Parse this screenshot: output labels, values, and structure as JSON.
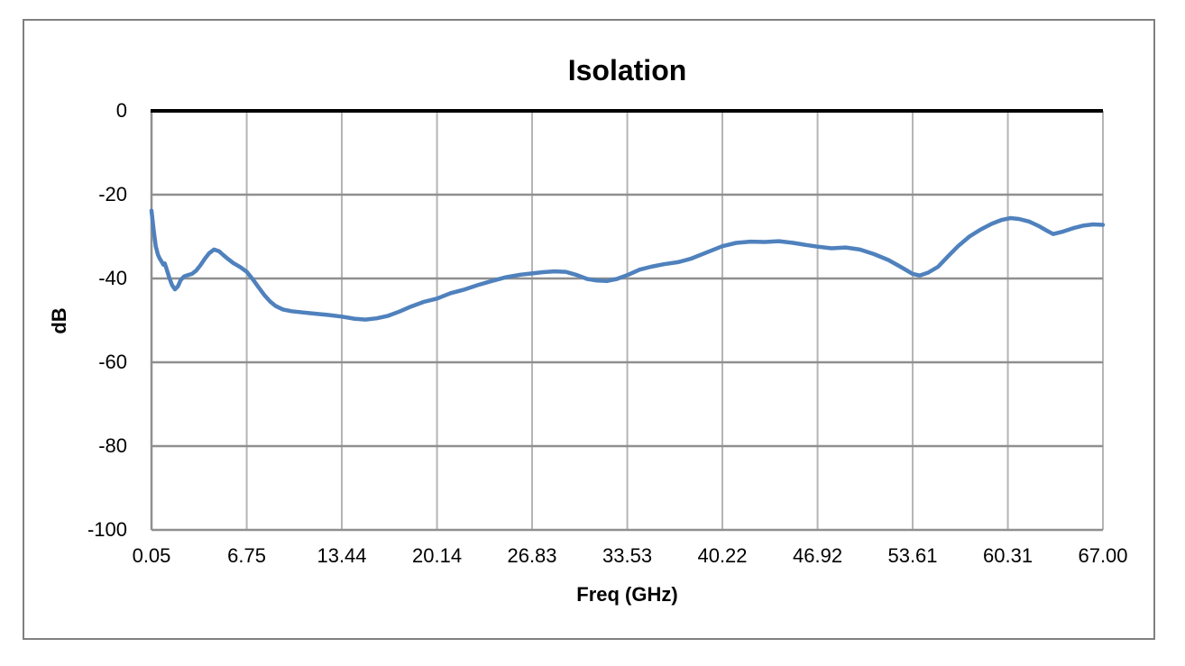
{
  "chart_data": {
    "type": "line",
    "title": "Isolation",
    "xlabel": "Freq (GHz)",
    "ylabel": "dB",
    "xlim": [
      0.05,
      67.0
    ],
    "ylim": [
      -100,
      0
    ],
    "grid": true,
    "legend": "none",
    "x_ticks": [
      "0.05",
      "6.75",
      "13.44",
      "20.14",
      "26.83",
      "33.53",
      "40.22",
      "46.92",
      "53.61",
      "60.31",
      "67.00"
    ],
    "x_tick_values": [
      0.05,
      6.75,
      13.44,
      20.14,
      26.83,
      33.53,
      40.22,
      46.92,
      53.61,
      60.31,
      67.0
    ],
    "y_ticks": [
      "0",
      "-20",
      "-40",
      "-60",
      "-80",
      "-100"
    ],
    "y_tick_values": [
      0,
      -20,
      -40,
      -60,
      -80,
      -100
    ],
    "colors": {
      "line": "#4F81BD",
      "grid_vertical": "#b5b5b5",
      "grid_horizontal": "#8f8f8f",
      "zero_axis": "#000000",
      "left_axis": "#8f8f8f",
      "frame_border": "#808080",
      "text": "#000000",
      "background": "#ffffff"
    },
    "series": [
      {
        "name": "Isolation",
        "points": [
          [
            0.05,
            -23.8
          ],
          [
            0.2,
            -28.5
          ],
          [
            0.35,
            -32.3
          ],
          [
            0.5,
            -34.3
          ],
          [
            0.62,
            -35.2
          ],
          [
            0.75,
            -35.9
          ],
          [
            0.88,
            -36.7
          ],
          [
            0.98,
            -36.4
          ],
          [
            1.1,
            -37.6
          ],
          [
            1.3,
            -39.8
          ],
          [
            1.5,
            -41.6
          ],
          [
            1.7,
            -42.6
          ],
          [
            1.9,
            -41.9
          ],
          [
            2.1,
            -40.4
          ],
          [
            2.35,
            -39.5
          ],
          [
            2.6,
            -39.2
          ],
          [
            2.9,
            -38.9
          ],
          [
            3.2,
            -38.1
          ],
          [
            3.5,
            -36.8
          ],
          [
            3.8,
            -35.3
          ],
          [
            4.1,
            -34.0
          ],
          [
            4.45,
            -33.1
          ],
          [
            4.8,
            -33.5
          ],
          [
            5.1,
            -34.4
          ],
          [
            5.45,
            -35.4
          ],
          [
            5.8,
            -36.3
          ],
          [
            6.3,
            -37.3
          ],
          [
            6.75,
            -38.4
          ],
          [
            7.2,
            -40.3
          ],
          [
            7.6,
            -42.2
          ],
          [
            8.0,
            -44.0
          ],
          [
            8.4,
            -45.5
          ],
          [
            8.8,
            -46.6
          ],
          [
            9.3,
            -47.4
          ],
          [
            9.9,
            -47.8
          ],
          [
            10.7,
            -48.1
          ],
          [
            11.6,
            -48.4
          ],
          [
            12.5,
            -48.7
          ],
          [
            13.44,
            -49.1
          ],
          [
            14.3,
            -49.6
          ],
          [
            15.1,
            -49.8
          ],
          [
            15.9,
            -49.5
          ],
          [
            16.7,
            -48.9
          ],
          [
            17.5,
            -47.9
          ],
          [
            18.3,
            -46.7
          ],
          [
            19.2,
            -45.6
          ],
          [
            20.14,
            -44.8
          ],
          [
            21.1,
            -43.5
          ],
          [
            22.0,
            -42.7
          ],
          [
            23.0,
            -41.6
          ],
          [
            24.0,
            -40.6
          ],
          [
            25.0,
            -39.7
          ],
          [
            26.0,
            -39.1
          ],
          [
            26.83,
            -38.8
          ],
          [
            27.6,
            -38.5
          ],
          [
            28.4,
            -38.3
          ],
          [
            29.2,
            -38.4
          ],
          [
            30.0,
            -39.2
          ],
          [
            30.7,
            -40.1
          ],
          [
            31.4,
            -40.5
          ],
          [
            32.1,
            -40.6
          ],
          [
            32.8,
            -40.1
          ],
          [
            33.53,
            -39.2
          ],
          [
            34.4,
            -37.9
          ],
          [
            35.2,
            -37.2
          ],
          [
            36.1,
            -36.6
          ],
          [
            37.1,
            -36.1
          ],
          [
            38.0,
            -35.3
          ],
          [
            39.1,
            -33.8
          ],
          [
            40.22,
            -32.3
          ],
          [
            41.2,
            -31.5
          ],
          [
            42.2,
            -31.2
          ],
          [
            43.2,
            -31.3
          ],
          [
            44.2,
            -31.1
          ],
          [
            45.2,
            -31.5
          ],
          [
            46.1,
            -32.0
          ],
          [
            46.92,
            -32.4
          ],
          [
            47.9,
            -32.8
          ],
          [
            48.9,
            -32.6
          ],
          [
            49.9,
            -33.1
          ],
          [
            50.9,
            -34.2
          ],
          [
            51.9,
            -35.6
          ],
          [
            52.8,
            -37.3
          ],
          [
            53.61,
            -38.9
          ],
          [
            54.1,
            -39.3
          ],
          [
            54.7,
            -38.6
          ],
          [
            55.4,
            -37.2
          ],
          [
            56.1,
            -34.7
          ],
          [
            56.8,
            -32.3
          ],
          [
            57.6,
            -30.0
          ],
          [
            58.4,
            -28.3
          ],
          [
            59.2,
            -26.9
          ],
          [
            59.9,
            -26.0
          ],
          [
            60.5,
            -25.6
          ],
          [
            61.1,
            -25.8
          ],
          [
            61.8,
            -26.4
          ],
          [
            62.5,
            -27.5
          ],
          [
            63.0,
            -28.5
          ],
          [
            63.5,
            -29.4
          ],
          [
            64.2,
            -28.8
          ],
          [
            64.9,
            -28.0
          ],
          [
            65.6,
            -27.4
          ],
          [
            66.3,
            -27.1
          ],
          [
            67.0,
            -27.2
          ]
        ]
      }
    ]
  }
}
